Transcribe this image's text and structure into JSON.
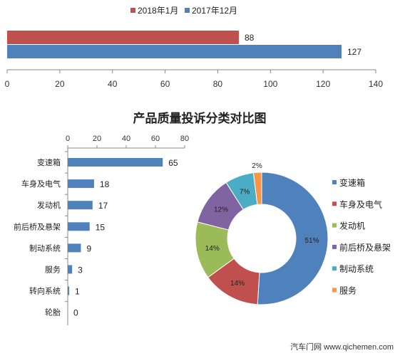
{
  "chart_data": [
    {
      "type": "bar",
      "orientation": "horizontal",
      "series": [
        {
          "name": "2018年1月",
          "color": "#C0504D",
          "values": [
            88
          ]
        },
        {
          "name": "2017年12月",
          "color": "#4F81BD",
          "values": [
            127
          ]
        }
      ],
      "xlim": [
        0,
        140
      ],
      "xticks": [
        0,
        20,
        40,
        60,
        80,
        100,
        120,
        140
      ],
      "legend": "top"
    },
    {
      "type": "bar",
      "orientation": "horizontal",
      "title": "产品质量投诉分类对比图",
      "categories": [
        "变速箱",
        "车身及电气",
        "发动机",
        "前后桥及悬架",
        "制动系统",
        "服务",
        "转向系统",
        "轮胎"
      ],
      "values": [
        65,
        18,
        17,
        15,
        9,
        3,
        1,
        0
      ],
      "color": "#4F81BD",
      "xlim": [
        0,
        80
      ],
      "xticks": [
        0,
        20,
        40,
        60,
        80
      ]
    },
    {
      "type": "pie",
      "style": "donut",
      "labels": [
        "变速箱",
        "车身及电气",
        "发动机",
        "前后桥及悬架",
        "制动系统",
        "服务"
      ],
      "values": [
        51,
        14,
        14,
        12,
        7,
        2
      ],
      "display": [
        "51%",
        "14%",
        "14%",
        "12%",
        "7%",
        "2%"
      ],
      "colors": [
        "#4F81BD",
        "#C0504D",
        "#9BBB59",
        "#8064A2",
        "#4BACC6",
        "#F79646"
      ],
      "legend": "right"
    }
  ],
  "watermark": "汽车门网 www.qichemen.com"
}
